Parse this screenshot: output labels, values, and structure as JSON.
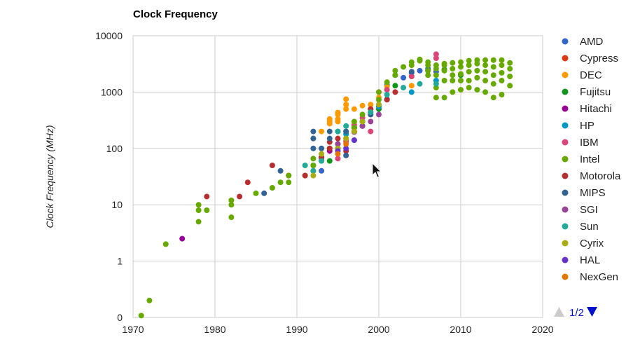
{
  "chart_data": {
    "type": "scatter",
    "title": "Clock Frequency",
    "xlabel": "",
    "ylabel": "Clock Frequency (MHz)",
    "xlim": [
      1970,
      2020
    ],
    "x_ticks": [
      1970,
      1980,
      1990,
      2000,
      2010,
      2020
    ],
    "y_scale": "log",
    "y_ticks": [
      {
        "label": "0",
        "value": 0.1
      },
      {
        "label": "1",
        "value": 1
      },
      {
        "label": "10",
        "value": 10
      },
      {
        "label": "100",
        "value": 100
      },
      {
        "label": "1000",
        "value": 1000
      },
      {
        "label": "10000",
        "value": 10000
      }
    ],
    "grid": true,
    "legend_position": "right",
    "legend_page": "1/2",
    "series": [
      {
        "name": "AMD",
        "color": "#3366cc",
        "points": [
          [
            1993,
            40
          ],
          [
            1997,
            233
          ],
          [
            2000,
            500
          ],
          [
            2001,
            1333
          ],
          [
            2002,
            2000
          ],
          [
            2003,
            1800
          ],
          [
            2004,
            2200
          ],
          [
            2005,
            2400
          ],
          [
            2006,
            2600
          ],
          [
            2007,
            2300
          ],
          [
            2008,
            2500
          ]
        ]
      },
      {
        "name": "Cypress",
        "color": "#dc3912",
        "points": [
          [
            1989,
            33
          ],
          [
            1992,
            40
          ]
        ]
      },
      {
        "name": "DEC",
        "color": "#ff9900",
        "points": [
          [
            1992,
            150
          ],
          [
            1993,
            200
          ],
          [
            1994,
            275
          ],
          [
            1994,
            300
          ],
          [
            1994,
            333
          ],
          [
            1995,
            300
          ],
          [
            1995,
            333
          ],
          [
            1995,
            400
          ],
          [
            1995,
            433
          ],
          [
            1996,
            500
          ],
          [
            1996,
            600
          ],
          [
            1996,
            750
          ],
          [
            1997,
            500
          ],
          [
            1998,
            575
          ],
          [
            1999,
            600
          ],
          [
            2000,
            800
          ],
          [
            2000,
            1000
          ],
          [
            2001,
            1250
          ],
          [
            2004,
            1300
          ]
        ]
      },
      {
        "name": "Fujitsu",
        "color": "#109618",
        "points": [
          [
            1994,
            60
          ],
          [
            1995,
            100
          ],
          [
            1998,
            300
          ],
          [
            2000,
            500
          ],
          [
            2002,
            1300
          ],
          [
            2004,
            1900
          ],
          [
            2006,
            2400
          ],
          [
            2008,
            2500
          ],
          [
            2010,
            2000
          ]
        ]
      },
      {
        "name": "Hitachi",
        "color": "#990099",
        "points": [
          [
            1976,
            2.5
          ],
          [
            1994,
            90
          ],
          [
            1997,
            200
          ],
          [
            1998,
            250
          ]
        ]
      },
      {
        "name": "HP",
        "color": "#0099c6",
        "points": [
          [
            1992,
            50
          ],
          [
            1995,
            100
          ],
          [
            1995,
            200
          ],
          [
            1996,
            180
          ],
          [
            1997,
            240
          ],
          [
            1999,
            440
          ],
          [
            2000,
            550
          ],
          [
            2001,
            750
          ],
          [
            2004,
            1000
          ],
          [
            2007,
            1600
          ]
        ]
      },
      {
        "name": "IBM",
        "color": "#dd4477",
        "points": [
          [
            1993,
            66
          ],
          [
            1995,
            66
          ],
          [
            1996,
            133
          ],
          [
            1997,
            262
          ],
          [
            1998,
            350
          ],
          [
            1999,
            400
          ],
          [
            1999,
            200
          ],
          [
            2001,
            1100
          ],
          [
            2004,
            1900
          ],
          [
            2007,
            4700
          ],
          [
            2007,
            4000
          ]
        ]
      },
      {
        "name": "Intel",
        "color": "#66aa00",
        "points": [
          [
            1971,
            0.108
          ],
          [
            1972,
            0.2
          ],
          [
            1974,
            2
          ],
          [
            1978,
            5
          ],
          [
            1978,
            8
          ],
          [
            1978,
            10
          ],
          [
            1979,
            8
          ],
          [
            1982,
            6
          ],
          [
            1982,
            10
          ],
          [
            1982,
            12
          ],
          [
            1985,
            16
          ],
          [
            1987,
            20
          ],
          [
            1988,
            25
          ],
          [
            1989,
            25
          ],
          [
            1989,
            33
          ],
          [
            1991,
            33
          ],
          [
            1992,
            50
          ],
          [
            1992,
            66
          ],
          [
            1993,
            60
          ],
          [
            1994,
            100
          ],
          [
            1995,
            120
          ],
          [
            1996,
            150
          ],
          [
            1996,
            200
          ],
          [
            1997,
            233
          ],
          [
            1997,
            300
          ],
          [
            1998,
            400
          ],
          [
            1999,
            500
          ],
          [
            2000,
            733
          ],
          [
            2000,
            1000
          ],
          [
            2001,
            1500
          ],
          [
            2002,
            2000
          ],
          [
            2002,
            2400
          ],
          [
            2003,
            2800
          ],
          [
            2004,
            3000
          ],
          [
            2004,
            3400
          ],
          [
            2005,
            3600
          ],
          [
            2005,
            3800
          ],
          [
            2006,
            2000
          ],
          [
            2006,
            2400
          ],
          [
            2006,
            3000
          ],
          [
            2006,
            3400
          ],
          [
            2007,
            800
          ],
          [
            2007,
            1200
          ],
          [
            2007,
            2000
          ],
          [
            2007,
            2600
          ],
          [
            2007,
            3000
          ],
          [
            2008,
            800
          ],
          [
            2008,
            1600
          ],
          [
            2008,
            2400
          ],
          [
            2008,
            3000
          ],
          [
            2008,
            3200
          ],
          [
            2009,
            1000
          ],
          [
            2009,
            1600
          ],
          [
            2009,
            2000
          ],
          [
            2009,
            2600
          ],
          [
            2009,
            3300
          ],
          [
            2010,
            1100
          ],
          [
            2010,
            1600
          ],
          [
            2010,
            2100
          ],
          [
            2010,
            2800
          ],
          [
            2010,
            3400
          ],
          [
            2011,
            1200
          ],
          [
            2011,
            1600
          ],
          [
            2011,
            2300
          ],
          [
            2011,
            3000
          ],
          [
            2011,
            3600
          ],
          [
            2012,
            1100
          ],
          [
            2012,
            1800
          ],
          [
            2012,
            2400
          ],
          [
            2012,
            3200
          ],
          [
            2012,
            3700
          ],
          [
            2013,
            1000
          ],
          [
            2013,
            1600
          ],
          [
            2013,
            2300
          ],
          [
            2013,
            3000
          ],
          [
            2013,
            3700
          ],
          [
            2014,
            800
          ],
          [
            2014,
            1400
          ],
          [
            2014,
            2000
          ],
          [
            2014,
            2800
          ],
          [
            2014,
            3700
          ],
          [
            2015,
            900
          ],
          [
            2015,
            1600
          ],
          [
            2015,
            2200
          ],
          [
            2015,
            3000
          ],
          [
            2015,
            3700
          ],
          [
            2016,
            1300
          ],
          [
            2016,
            1900
          ],
          [
            2016,
            2600
          ],
          [
            2016,
            3300
          ]
        ]
      },
      {
        "name": "Motorola",
        "color": "#b82e2e",
        "points": [
          [
            1979,
            14
          ],
          [
            1983,
            14
          ],
          [
            1984,
            25
          ],
          [
            1987,
            50
          ],
          [
            1991,
            33
          ],
          [
            1993,
            70
          ],
          [
            1994,
            100
          ],
          [
            1994,
            130
          ],
          [
            1995,
            150
          ],
          [
            1996,
            90
          ],
          [
            1999,
            500
          ],
          [
            2001,
            733
          ],
          [
            2002,
            1000
          ]
        ]
      },
      {
        "name": "MIPS",
        "color": "#316395",
        "points": [
          [
            1986,
            16
          ],
          [
            1988,
            40
          ],
          [
            1992,
            100
          ],
          [
            1992,
            150
          ],
          [
            1992,
            200
          ],
          [
            1993,
            100
          ],
          [
            1994,
            200
          ],
          [
            1994,
            150
          ],
          [
            1995,
            100
          ],
          [
            1996,
            200
          ],
          [
            1996,
            75
          ],
          [
            1998,
            250
          ],
          [
            1999,
            400
          ],
          [
            2004,
            2300
          ]
        ]
      },
      {
        "name": "SGI",
        "color": "#994499",
        "points": [
          [
            1995,
            120
          ],
          [
            1997,
            195
          ],
          [
            1998,
            250
          ],
          [
            1999,
            300
          ],
          [
            2000,
            400
          ]
        ]
      },
      {
        "name": "Sun",
        "color": "#22aa99",
        "points": [
          [
            1991,
            50
          ],
          [
            1992,
            40
          ],
          [
            1993,
            60
          ],
          [
            1995,
            200
          ],
          [
            1996,
            250
          ],
          [
            1997,
            140
          ],
          [
            1998,
            300
          ],
          [
            1999,
            440
          ],
          [
            2000,
            600
          ],
          [
            2001,
            900
          ],
          [
            2003,
            1200
          ],
          [
            2005,
            1400
          ],
          [
            2007,
            1400
          ]
        ]
      },
      {
        "name": "Cyrix",
        "color": "#aaaa11",
        "points": [
          [
            1992,
            33
          ],
          [
            1993,
            80
          ],
          [
            1995,
            100
          ],
          [
            1996,
            150
          ],
          [
            1997,
            200
          ],
          [
            1998,
            300
          ],
          [
            2000,
            600
          ]
        ]
      },
      {
        "name": "HAL",
        "color": "#6633cc",
        "points": [
          [
            1995,
            90
          ],
          [
            1996,
            100
          ],
          [
            1997,
            140
          ]
        ]
      },
      {
        "name": "NexGen",
        "color": "#e67300",
        "points": [
          [
            1995,
            80
          ],
          [
            1996,
            120
          ]
        ]
      }
    ]
  }
}
